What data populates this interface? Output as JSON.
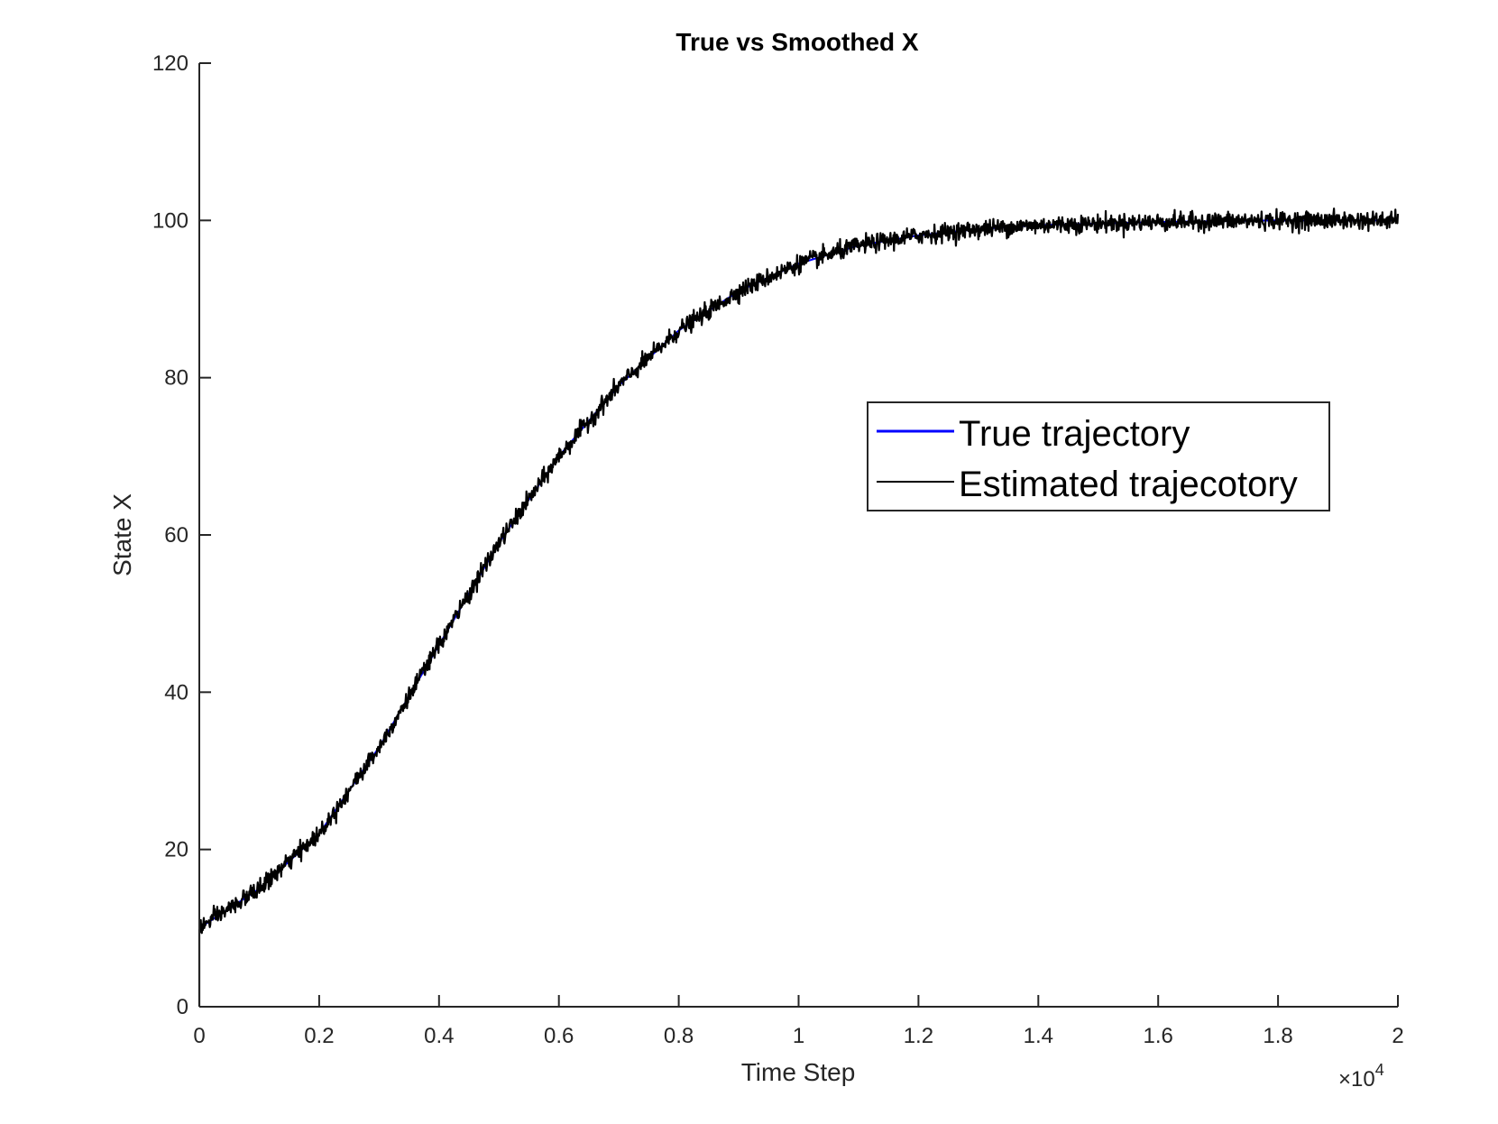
{
  "chart_data": {
    "type": "line",
    "title": "True vs Smoothed X",
    "xlabel": "Time Step",
    "ylabel": "State X",
    "x_exponent_base": "×10",
    "x_exponent_power": "4",
    "xlim": [
      0,
      2
    ],
    "ylim": [
      0,
      120
    ],
    "xticks": [
      "0",
      "0.2",
      "0.4",
      "0.6",
      "0.8",
      "1",
      "1.2",
      "1.4",
      "1.6",
      "1.8",
      "2"
    ],
    "yticks": [
      "0",
      "20",
      "40",
      "60",
      "80",
      "100",
      "120"
    ],
    "grid": false,
    "legend_position": "center-right",
    "series": [
      {
        "name": "True trajectory",
        "color": "#0000ff",
        "x": [
          0,
          0.1,
          0.2,
          0.3,
          0.4,
          0.5,
          0.6,
          0.7,
          0.8,
          0.9,
          1.0,
          1.1,
          1.2,
          1.3,
          1.4,
          1.5,
          1.6,
          1.7,
          1.8,
          1.9,
          2.0
        ],
        "values": [
          10,
          15,
          22,
          33,
          46,
          59,
          70,
          79,
          86,
          91,
          94.5,
          96.8,
          98.1,
          98.9,
          99.4,
          99.6,
          99.8,
          99.9,
          100,
          100,
          100
        ]
      },
      {
        "name": "Estimated trajecotory",
        "color": "#000000",
        "x": [
          0,
          0.1,
          0.2,
          0.3,
          0.4,
          0.5,
          0.6,
          0.7,
          0.8,
          0.9,
          1.0,
          1.1,
          1.2,
          1.3,
          1.4,
          1.5,
          1.6,
          1.7,
          1.8,
          1.9,
          2.0
        ],
        "values": [
          10,
          15,
          22,
          33,
          46,
          59,
          70,
          79,
          86,
          91,
          94.5,
          96.8,
          98.1,
          98.9,
          99.4,
          99.6,
          99.8,
          99.9,
          100,
          100,
          100
        ]
      }
    ]
  }
}
